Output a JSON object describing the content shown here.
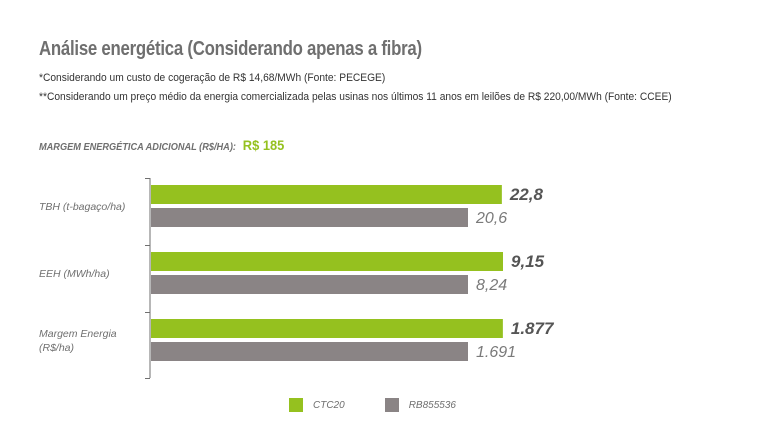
{
  "header": {
    "title": "Análise energética (Considerando apenas a fibra)",
    "note1": "*Considerando um custo de cogeração de R$ 14,68/MWh (Fonte: PECEGE)",
    "note2": "**Considerando um preço médio da energia comercializada pelas usinas nos últimos 11 anos em leilões de R$ 220,00/MWh (Fonte: CCEE)"
  },
  "margin": {
    "label": "MARGEM ENERGÉTICA ADICIONAL (R$/HA):",
    "value": "R$ 185"
  },
  "colors": {
    "green": "#95c11f",
    "gray": "#8a8485",
    "text": "#6f6f6f",
    "axis": "#6f6f6f"
  },
  "chart_data": {
    "type": "bar",
    "orientation": "horizontal",
    "categories": [
      {
        "lines": [
          "TBH (t-bagaço/ha)"
        ]
      },
      {
        "lines": [
          "EEH (MWh/ha)"
        ]
      },
      {
        "lines": [
          "Margem Energia",
          "(R$/ha)"
        ]
      }
    ],
    "series": [
      {
        "name": "CTC20",
        "color": "#95c11f",
        "values": [
          1.1068,
          1.1104,
          1.11
        ],
        "labels": [
          "22,8",
          "9,15",
          "1.877"
        ]
      },
      {
        "name": "RB855536",
        "color": "#8a8485",
        "values": [
          1.0,
          1.0,
          1.0
        ],
        "labels": [
          "20,6",
          "8,24",
          "1.691"
        ]
      }
    ],
    "scale_note": "bars normalized to RB855536 = 1.0 for each category",
    "xlim": [
      0,
      1.22
    ],
    "grid": false,
    "legend_position": "bottom"
  }
}
